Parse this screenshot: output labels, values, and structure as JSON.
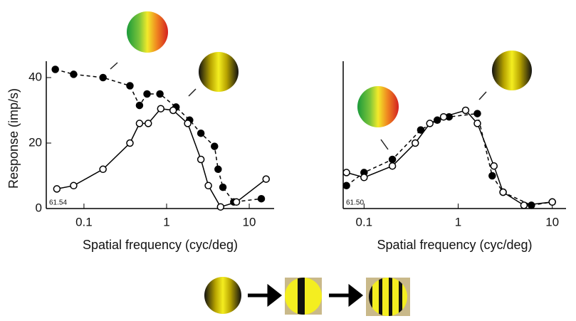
{
  "chart_data": [
    {
      "type": "line",
      "ylabel": "Response (imp/s)",
      "xlabel": "Spatial frequency (cyc/deg)",
      "annotation": "61.54",
      "xscale": "log",
      "xlim": [
        0.035,
        20
      ],
      "xticks": [
        0.1,
        1,
        10
      ],
      "ylim": [
        0,
        45
      ],
      "yticks": [
        0,
        20,
        40
      ],
      "series": [
        {
          "color": "#000000",
          "marker": "filled",
          "line_style": "dashed",
          "x": [
            0.045,
            0.075,
            0.17,
            0.36,
            0.47,
            0.58,
            0.83,
            1.3,
            1.9,
            2.6,
            3.8,
            4.2,
            4.8,
            6.5,
            14
          ],
          "values": [
            42.5,
            41,
            40,
            37.5,
            31.5,
            35,
            35,
            31,
            27,
            23,
            19,
            12,
            6.5,
            2,
            3
          ]
        },
        {
          "color": "#000000",
          "marker": "open",
          "line_style": "solid",
          "x": [
            0.047,
            0.075,
            0.17,
            0.36,
            0.47,
            0.6,
            0.85,
            1.2,
            1.8,
            2.6,
            3.2,
            4.5,
            7,
            16
          ],
          "values": [
            6,
            7,
            12,
            20,
            26,
            26,
            30.5,
            30,
            26,
            15,
            7,
            0.5,
            2,
            9
          ]
        }
      ]
    },
    {
      "type": "line",
      "xlabel": "Spatial frequency (cyc/deg)",
      "annotation": "61.50",
      "xscale": "log",
      "xlim": [
        0.06,
        14
      ],
      "xticks": [
        0.1,
        1,
        10
      ],
      "ylim": [
        0,
        45
      ],
      "series": [
        {
          "color": "#000000",
          "marker": "filled",
          "line_style": "dashed",
          "x": [
            0.065,
            0.1,
            0.2,
            0.4,
            0.6,
            0.8,
            1.6,
            2.3,
            3,
            6,
            10
          ],
          "values": [
            7,
            11,
            15,
            24,
            27,
            28,
            29,
            10,
            5,
            1,
            2
          ]
        },
        {
          "color": "#000000",
          "marker": "open",
          "line_style": "solid",
          "x": [
            0.065,
            0.1,
            0.2,
            0.35,
            0.5,
            0.7,
            1.2,
            1.6,
            2.4,
            3,
            5,
            10
          ],
          "values": [
            11,
            9.5,
            13,
            20,
            26,
            28,
            30,
            26,
            13,
            5,
            1,
            2
          ]
        }
      ]
    }
  ]
}
